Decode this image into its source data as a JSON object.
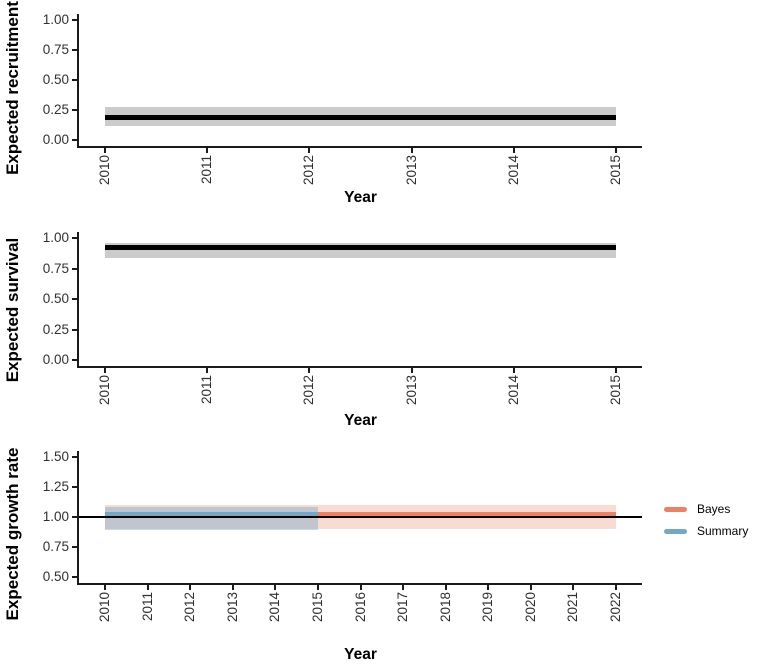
{
  "colors": {
    "background": "#FFFFFF",
    "axis_line": "#1A1A1A",
    "tick_text": "#303030",
    "estimate_line": "#000000",
    "estimate_band": "#CBCBCB",
    "bayes": "#ED8164",
    "bayes_band": "#F8DCD3",
    "summary": "#74A8C8",
    "summary_band": "rgba(116,168,200,0.42)",
    "reference_line": "#000000"
  },
  "legend": {
    "position": "right-of-growth-panel",
    "items": [
      {
        "label": "Bayes",
        "color": "#ED8164"
      },
      {
        "label": "Summary",
        "color": "#74A8C8"
      }
    ]
  },
  "chart_data": [
    {
      "type": "line",
      "id": "expected-recruitment",
      "ylabel": "Expected recruitment",
      "xlabel": "Year",
      "xlim": [
        2010,
        2015
      ],
      "ylim": [
        0,
        1
      ],
      "grid": false,
      "xticks": [
        "2010",
        "2011",
        "2012",
        "2013",
        "2014",
        "2015"
      ],
      "xtick_values": [
        2010,
        2011,
        2012,
        2013,
        2014,
        2015
      ],
      "yticks": [
        "0.00",
        "0.25",
        "0.50",
        "0.75",
        "1.00"
      ],
      "ytick_values": [
        0,
        0.25,
        0.5,
        0.75,
        1
      ],
      "series": [
        {
          "name": "estimate",
          "color": "#000000",
          "band_color": "#CBCBCB",
          "band_x": [
            2010,
            2015
          ],
          "line_x": [
            2010,
            2015
          ],
          "mean": 0.19,
          "lower": 0.12,
          "upper": 0.275
        }
      ]
    },
    {
      "type": "line",
      "id": "expected-survival",
      "ylabel": "Expected survival",
      "xlabel": "Year",
      "xlim": [
        2010,
        2015
      ],
      "ylim": [
        0,
        1
      ],
      "grid": false,
      "xticks": [
        "2010",
        "2011",
        "2012",
        "2013",
        "2014",
        "2015"
      ],
      "xtick_values": [
        2010,
        2011,
        2012,
        2013,
        2014,
        2015
      ],
      "yticks": [
        "0.00",
        "0.25",
        "0.50",
        "0.75",
        "1.00"
      ],
      "ytick_values": [
        0,
        0.25,
        0.5,
        0.75,
        1
      ],
      "series": [
        {
          "name": "estimate",
          "color": "#000000",
          "band_color": "#CBCBCB",
          "band_x": [
            2010,
            2015
          ],
          "line_x": [
            2010,
            2015
          ],
          "mean": 0.92,
          "lower": 0.84,
          "upper": 0.96
        }
      ]
    },
    {
      "type": "line",
      "id": "expected-growth-rate",
      "ylabel": "Expected growth rate",
      "xlabel": "Year",
      "xlim": [
        2010,
        2022
      ],
      "ylim": [
        0.5,
        1.5
      ],
      "grid": false,
      "reference_line": 1.0,
      "xticks": [
        "2010",
        "2011",
        "2012",
        "2013",
        "2014",
        "2015",
        "2016",
        "2017",
        "2018",
        "2019",
        "2020",
        "2021",
        "2022"
      ],
      "xtick_values": [
        2010,
        2011,
        2012,
        2013,
        2014,
        2015,
        2016,
        2017,
        2018,
        2019,
        2020,
        2021,
        2022
      ],
      "yticks": [
        "0.50",
        "0.75",
        "1.00",
        "1.25",
        "1.50"
      ],
      "ytick_values": [
        0.5,
        0.75,
        1,
        1.25,
        1.5
      ],
      "series": [
        {
          "name": "Bayes",
          "color": "#ED8164",
          "band_color": "#F8DCD3",
          "band_x": [
            2010,
            2022
          ],
          "line_x": [
            2015,
            2022
          ],
          "mean": 1.02,
          "lower": 0.9,
          "upper": 1.1
        },
        {
          "name": "Summary",
          "color": "#74A8C8",
          "band_color": "rgba(116,168,200,0.42)",
          "band_x": [
            2010,
            2015
          ],
          "line_x": [
            2010,
            2015
          ],
          "mean": 1.02,
          "lower": 0.89,
          "upper": 1.08
        }
      ]
    }
  ]
}
